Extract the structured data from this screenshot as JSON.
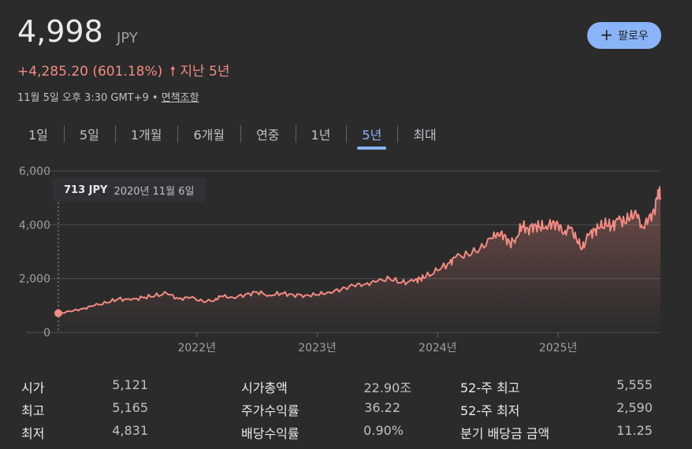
{
  "header": {
    "price": "4,998",
    "currency": "JPY",
    "change": "+4,285.20 (601.18%)",
    "change_arrow": "🠕",
    "period": "지난 5년",
    "timestamp": "11월 5일 오후 3:30 GMT+9 •",
    "disclaimer": "면책조항",
    "follow_label": "팔로우",
    "follow_icon": "+"
  },
  "tabs": [
    {
      "label": "1일"
    },
    {
      "label": "5일"
    },
    {
      "label": "1개월"
    },
    {
      "label": "6개월"
    },
    {
      "label": "연중"
    },
    {
      "label": "1년"
    },
    {
      "label": "5년",
      "active": true
    },
    {
      "label": "최대"
    }
  ],
  "tooltip": {
    "value": "713 JPY",
    "date": "2020년 11월 6일"
  },
  "colors": {
    "line": "#f28b82",
    "accent": "#8ab4f8",
    "background": "#2b2b2b"
  },
  "chart_data": {
    "type": "area",
    "y_ticks": [
      "6,000",
      "4,000",
      "2,000",
      "0"
    ],
    "ylim": [
      0,
      6000
    ],
    "x_ticks": [
      "2022년",
      "2023년",
      "2024년",
      "2025년"
    ],
    "x_tick_years": [
      2022,
      2023,
      2024,
      2025
    ],
    "xlim": [
      2020.85,
      2025.85
    ],
    "series": [
      {
        "x": [
          2020.85,
          2020.95,
          2021.05,
          2021.15,
          2021.25,
          2021.35,
          2021.45,
          2021.55,
          2021.65,
          2021.75,
          2021.85,
          2021.95,
          2022.05,
          2022.15,
          2022.2,
          2022.3,
          2022.4,
          2022.5,
          2022.6,
          2022.7,
          2022.8,
          2022.9,
          2023.0,
          2023.1,
          2023.2,
          2023.3,
          2023.4,
          2023.5,
          2023.6,
          2023.7,
          2023.8,
          2023.85,
          2023.9,
          2024.0,
          2024.1,
          2024.15,
          2024.25,
          2024.35,
          2024.45,
          2024.5,
          2024.55,
          2024.6,
          2024.65,
          2024.7,
          2024.75,
          2024.8,
          2024.85,
          2024.9,
          2024.95,
          2025.0,
          2025.05,
          2025.1,
          2025.15,
          2025.2,
          2025.25,
          2025.3,
          2025.35,
          2025.4,
          2025.45,
          2025.5,
          2025.55,
          2025.6,
          2025.65,
          2025.7,
          2025.75,
          2025.8,
          2025.83,
          2025.85
        ],
        "y": [
          713,
          780,
          880,
          1000,
          1100,
          1250,
          1200,
          1300,
          1350,
          1450,
          1250,
          1300,
          1150,
          1200,
          1350,
          1300,
          1400,
          1500,
          1380,
          1450,
          1400,
          1380,
          1400,
          1500,
          1600,
          1750,
          1800,
          1900,
          2000,
          1850,
          1900,
          2000,
          2050,
          2300,
          2600,
          2800,
          2900,
          3100,
          3500,
          3700,
          3600,
          3300,
          3500,
          3950,
          3850,
          4000,
          3900,
          3950,
          4050,
          4000,
          3700,
          3900,
          3500,
          3100,
          3600,
          3800,
          3900,
          4000,
          3950,
          4200,
          4100,
          4300,
          4400,
          3900,
          4200,
          4500,
          5300,
          4998
        ]
      }
    ]
  },
  "stats": {
    "col1": [
      {
        "label": "시가",
        "value": "5,121"
      },
      {
        "label": "최고",
        "value": "5,165"
      },
      {
        "label": "최저",
        "value": "4,831"
      }
    ],
    "col2": [
      {
        "label": "시가총액",
        "value": "22.90조"
      },
      {
        "label": "주가수익률",
        "value": "36.22"
      },
      {
        "label": "배당수익률",
        "value": "0.90%"
      }
    ],
    "col3": [
      {
        "label": "52-주 최고",
        "value": "5,555"
      },
      {
        "label": "52-주 최저",
        "value": "2,590"
      },
      {
        "label": "분기 배당금 금액",
        "value": "11.25"
      }
    ]
  }
}
